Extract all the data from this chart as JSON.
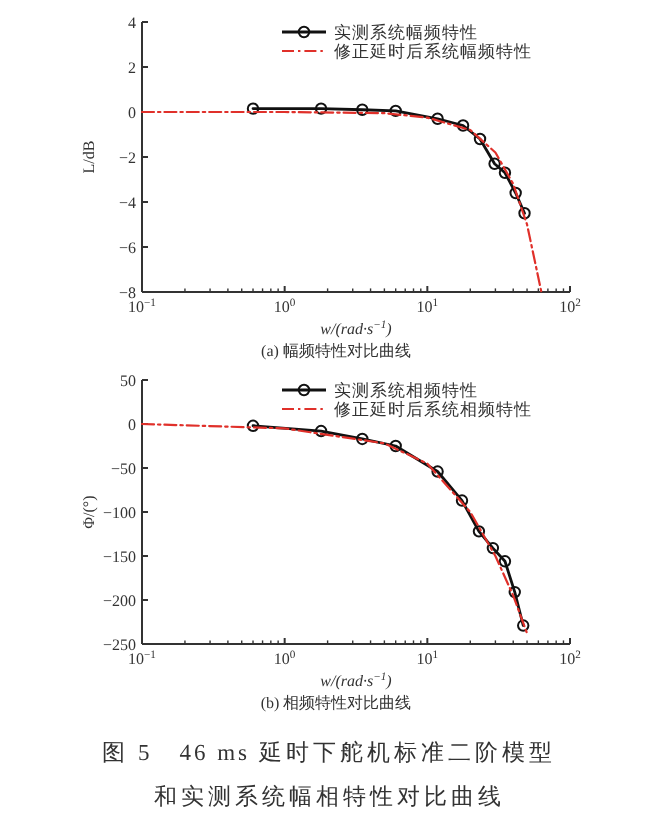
{
  "chart_data": [
    {
      "type": "line",
      "xlabel": "w/(rad·s$^{−1}$)",
      "ylabel": "L/dB",
      "log": "x",
      "xlim": [
        0.1,
        100
      ],
      "xticks": [
        {
          "value": 0.1,
          "label": "10$^{−1}$"
        },
        {
          "value": 1,
          "label": "10$^{0}$"
        },
        {
          "value": 10,
          "label": "10$^{1}$"
        },
        {
          "value": 100,
          "label": "10$^{2}$"
        }
      ],
      "ylim": [
        -8,
        4
      ],
      "yticks": [
        -8,
        -6,
        -4,
        -2,
        0,
        2,
        4
      ],
      "legend": "top right",
      "annotations": [
        "(a) 幅频特性对比曲线"
      ],
      "series": [
        {
          "name": "实测系统幅频特性",
          "color": "#111111",
          "marker": "circle",
          "line_style": "solid",
          "x": [
            0.6,
            1.8,
            3.5,
            6,
            11.8,
            17.8,
            23.4,
            29.6,
            35,
            41.6,
            48
          ],
          "values": [
            0.15,
            0.15,
            0.1,
            0.05,
            -0.3,
            -0.6,
            -1.2,
            -2.3,
            -2.7,
            -3.6,
            -4.5
          ]
        },
        {
          "name": "修正延时后系统幅频特性",
          "color": "#e0302a",
          "marker": "none",
          "line_style": "dashed",
          "x": [
            0.1,
            1,
            5,
            10,
            20,
            30,
            40,
            50,
            63
          ],
          "values": [
            0,
            0,
            -0.05,
            -0.25,
            -0.8,
            -1.8,
            -3.2,
            -5,
            -8
          ]
        }
      ]
    },
    {
      "type": "line",
      "xlabel": "w/(rad·s$^{−1}$)",
      "ylabel": "Φ/(°)",
      "log": "x",
      "xlim": [
        0.1,
        100
      ],
      "xticks": [
        {
          "value": 0.1,
          "label": "10$^{−1}$"
        },
        {
          "value": 1,
          "label": "10$^{0}$"
        },
        {
          "value": 10,
          "label": "10$^{1}$"
        },
        {
          "value": 100,
          "label": "10$^{2}$"
        }
      ],
      "ylim": [
        -250,
        50
      ],
      "yticks": [
        -250,
        -200,
        -150,
        -100,
        -50,
        0,
        50
      ],
      "legend": "top right",
      "annotations": [
        "(b) 相频特性对比曲线",
        "图 5　46 ms 延时下舵机标准二阶模型和实测系统幅相特性对比曲线"
      ],
      "series": [
        {
          "name": "实测系统相频特性",
          "color": "#111111",
          "marker": "circle",
          "line_style": "solid",
          "x": [
            0.6,
            1.8,
            3.5,
            6,
            11.8,
            17.5,
            23,
            28.8,
            35,
            41,
            47
          ],
          "values": [
            -2,
            -8,
            -17,
            -25,
            -54,
            -87,
            -122,
            -141,
            -156,
            -191,
            -229
          ]
        },
        {
          "name": "修正延时后系统相频特性",
          "color": "#e0302a",
          "marker": "none",
          "line_style": "dashed",
          "x": [
            0.1,
            1,
            5,
            10,
            20,
            30,
            40,
            50
          ],
          "values": [
            0,
            -5,
            -22,
            -45,
            -100,
            -150,
            -195,
            -238
          ]
        }
      ]
    }
  ]
}
